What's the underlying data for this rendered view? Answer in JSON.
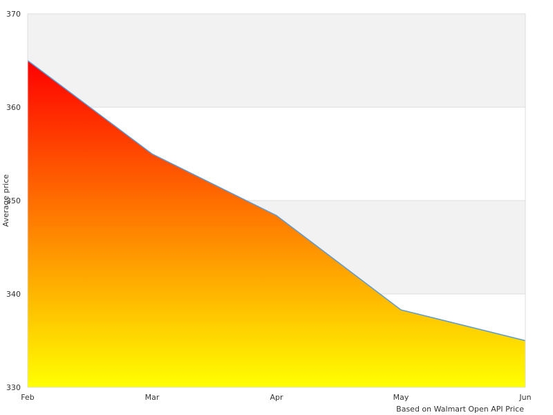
{
  "chart_data": {
    "type": "area",
    "categories": [
      "Feb",
      "Mar",
      "Apr",
      "May",
      "Jun"
    ],
    "series": [
      {
        "values": [
          365.0,
          355.0,
          348.4,
          338.3,
          335.0
        ]
      }
    ],
    "ylabel": "Average price",
    "xlabel": "",
    "ylim": [
      330,
      370
    ],
    "yticks": [
      330,
      340,
      350,
      360,
      370
    ],
    "grid": true,
    "credit": "Based on Walmart Open API Price",
    "colors": {
      "fill_top": "#ff0000",
      "fill_bottom": "#ffff00",
      "line": "#5b9bd5",
      "band": "#f2f2f2",
      "gridline": "#dddddd"
    }
  }
}
